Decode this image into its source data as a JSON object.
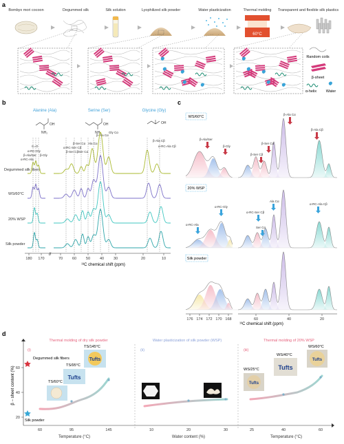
{
  "panel_labels": {
    "a": "a",
    "b": "b",
    "c": "c",
    "d": "d"
  },
  "panel_a": {
    "steps": [
      {
        "label": "Bombyx mori cocoon"
      },
      {
        "label": "Degummed silk"
      },
      {
        "label": "Silk solution"
      },
      {
        "label": "Lyophilized silk powder"
      },
      {
        "label": "Water plasticization"
      },
      {
        "label": "Thermal molding"
      },
      {
        "label": "Transparent and flexible silk plastics"
      }
    ],
    "temperature": "60°C",
    "legend": {
      "random_coils": "Random coils",
      "beta_sheet": "β-sheet",
      "alpha_helix": "α-helix",
      "water": "Water"
    }
  },
  "panel_b": {
    "molecules": [
      {
        "name": "Alanine (Ala)",
        "formula_top": "OH",
        "formula_bottom": "NH₂"
      },
      {
        "name": "Serine (Ser)",
        "formula_top": "OH",
        "formula_bottom": "NH₂"
      },
      {
        "name": "Glycine (Gly)",
        "formula_top": "OH",
        "formula_bottom": ""
      }
    ],
    "samples": [
      "Degummed silk fibers",
      "WS/60°C",
      "20% WSP",
      "Silk powder"
    ],
    "sample_colors": [
      "#a9b92e",
      "#7b6fc8",
      "#3fc6c0",
      "#2ba4a8"
    ],
    "peak_labels": [
      "C=O",
      "α-RC-Gly",
      "β-Ala/Ser",
      "β-Gly",
      "α-RC-Ala",
      "β-Ser Cα",
      "α-RC-Ser Cβ",
      "β-Ser Cβ",
      "Ser Cα",
      "Ala Cα",
      "β-Ala Cα",
      "Gly Cα",
      "β-Ala Cβ",
      "α-RC-Ala Cβ"
    ],
    "x_ticks": [
      "180",
      "170",
      "70",
      "60",
      "50",
      "40",
      "30",
      "20",
      "10"
    ],
    "xlabel": "¹³C chemical shift (ppm)"
  },
  "panel_c": {
    "sections": [
      "WS/60°C",
      "20% WSP",
      "Silk powder"
    ],
    "ws60_labels": [
      "β-Ala/Ser",
      "β-Gly",
      "β-Ser Cα",
      "β-Ser Cβ",
      "β-Ala Cα",
      "β-Ala Cβ"
    ],
    "wsp_labels": [
      "α-RC-Gly",
      "α-RC-Ala",
      "α-RC-Ser Cβ",
      "Ser Cα",
      "Ala Cα",
      "α-RC-Ala Cβ"
    ],
    "x_ticks_left": [
      "176",
      "174",
      "172",
      "170",
      "168"
    ],
    "x_ticks_right": [
      "60",
      "40",
      "20"
    ],
    "xlabel": "¹³C chemical shift (ppm)"
  },
  "panel_d": {
    "ylabel": "β − sheet content (%)",
    "y_ticks": [
      "20",
      "40",
      "60"
    ],
    "subpanels": [
      {
        "roman": "(i)",
        "title": "Thermal molding of dry silk powder",
        "xlabel": "Temperature (°C)",
        "x_ticks": [
          "60",
          "95",
          "145"
        ]
      },
      {
        "roman": "(ii)",
        "title": "Water plasticization of silk powder (WSP)",
        "xlabel": "Water content (%)",
        "x_ticks": [
          "10",
          "20",
          "30"
        ]
      },
      {
        "roman": "(iii)",
        "title": "Thermal molding of 20% WSP",
        "xlabel": "Temperature (°C)",
        "x_ticks": [
          "25",
          "40",
          "60"
        ]
      }
    ],
    "annotations": {
      "degummed": "Degummed silk fibers",
      "powder": "Silk powder",
      "ts60": "TS/60°C",
      "ts95": "TS/95°C",
      "ts145": "TS/145°C",
      "ws25": "WS/25°C",
      "ws40": "WS/40°C",
      "ws60": "WS/60°C",
      "brand": "Tufts"
    },
    "colors": {
      "title": "#e5607b",
      "title_mid": "#8aa0d8",
      "star_red": "#d9343f",
      "star_blue": "#37a8d6"
    }
  }
}
